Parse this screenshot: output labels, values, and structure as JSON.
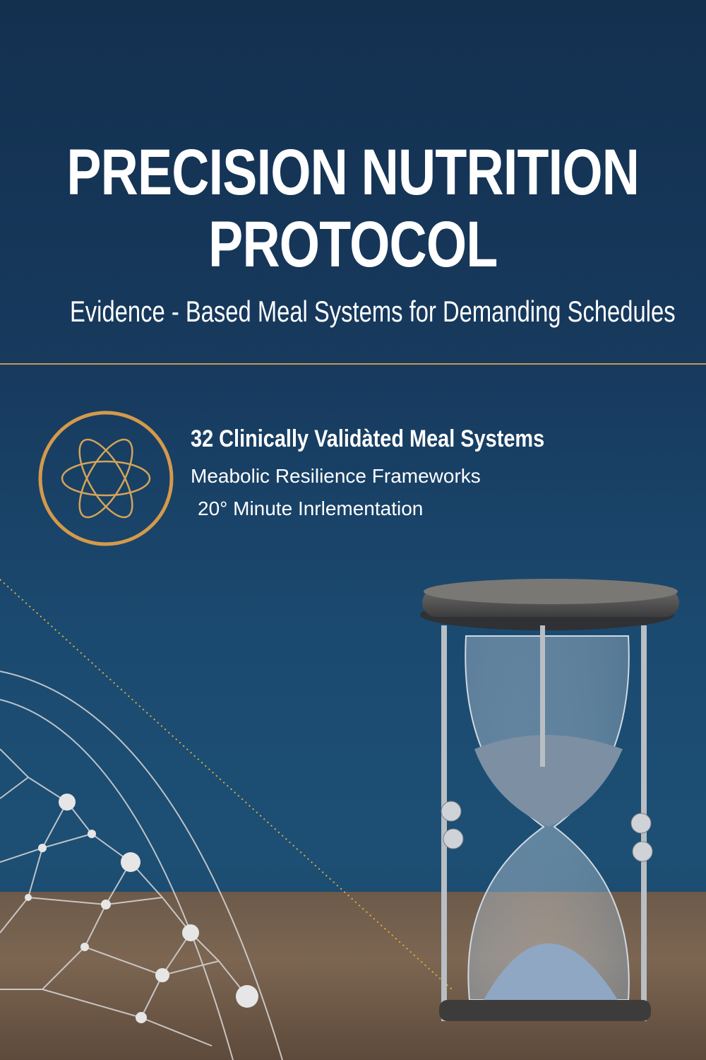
{
  "title": {
    "line1": "PRECISION NUTRITION",
    "line2": "PROTOCOL"
  },
  "subtitle": "Evidence - Based Meal Systems for Demanding Schedules",
  "features": [
    "32 Clinically Validàted Meal Systems",
    "Meabolic Resilience Frameworks",
    "20° Minute Inrlementation"
  ],
  "icons": {
    "feature_badge": "atom-icon",
    "illustration": "hourglass-icon",
    "decoration": "molecular-network"
  },
  "colors": {
    "background": "#173a5e",
    "accent_gold": "#c79a52",
    "text": "#ffffff",
    "sand": "#8aa3bd"
  }
}
